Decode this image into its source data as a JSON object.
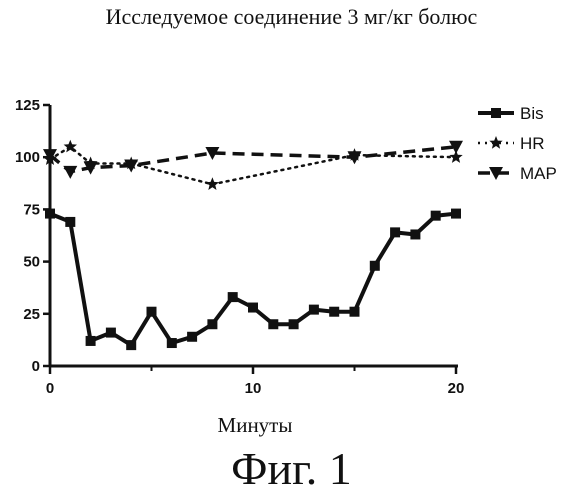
{
  "title": "Исследуемое соединение 3 мг/кг болюс",
  "figure_label": "Фиг. 1",
  "chart_data": {
    "type": "line",
    "title": "Исследуемое соединение 3 мг/кг болюс",
    "xlabel": "Минуты",
    "ylabel": "",
    "xlim": [
      0,
      20
    ],
    "ylim": [
      0,
      125
    ],
    "xticks": [
      0,
      10,
      20
    ],
    "yticks": [
      0,
      25,
      50,
      75,
      100,
      125
    ],
    "grid": false,
    "legend_position": "top-right",
    "series": [
      {
        "name": "Bis",
        "line_style": "solid",
        "marker": "square",
        "points": [
          [
            0,
            73
          ],
          [
            1,
            69
          ],
          [
            2,
            12
          ],
          [
            3,
            16
          ],
          [
            4,
            10
          ],
          [
            5,
            26
          ],
          [
            6,
            11
          ],
          [
            7,
            14
          ],
          [
            8,
            20
          ],
          [
            9,
            33
          ],
          [
            10,
            28
          ],
          [
            11,
            20
          ],
          [
            12,
            20
          ],
          [
            13,
            27
          ],
          [
            14,
            26
          ],
          [
            15,
            26
          ],
          [
            16,
            48
          ],
          [
            17,
            64
          ],
          [
            18,
            63
          ],
          [
            19,
            72
          ],
          [
            20,
            73
          ]
        ]
      },
      {
        "name": "HR",
        "line_style": "dotted",
        "marker": "star",
        "points": [
          [
            0,
            99
          ],
          [
            1,
            105
          ],
          [
            2,
            97
          ],
          [
            4,
            97
          ],
          [
            8,
            87
          ],
          [
            15,
            101
          ],
          [
            20,
            100
          ]
        ]
      },
      {
        "name": "MAP",
        "line_style": "dashed",
        "marker": "triangle-down",
        "points": [
          [
            0,
            101
          ],
          [
            1,
            93
          ],
          [
            2,
            95
          ],
          [
            4,
            96
          ],
          [
            8,
            102
          ],
          [
            15,
            100
          ],
          [
            20,
            105
          ]
        ]
      }
    ]
  }
}
